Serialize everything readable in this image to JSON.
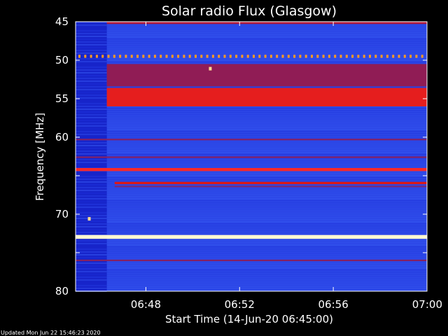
{
  "chart_data": {
    "type": "heatmap",
    "title": "Solar radio Flux (Glasgow)",
    "xlabel": "Start Time (14-Jun-20 06:45:00)",
    "ylabel": "Frequency [MHz]",
    "x_ticks": [
      "06:48",
      "06:52",
      "06:56",
      "07:00"
    ],
    "y_ticks": [
      45,
      50,
      55,
      60,
      65,
      70,
      75,
      80
    ],
    "y_tick_labels": [
      "45",
      "50",
      "55",
      "60",
      "",
      "70",
      "",
      "80"
    ],
    "xlim": [
      "06:45:00",
      "07:00:00"
    ],
    "ylim": [
      80,
      45
    ],
    "colormap": [
      "#00008c",
      "#1b2cd6",
      "#3a5ef5",
      "#8a1c5a",
      "#d81818",
      "#ff2a2a",
      "#ffa020",
      "#fff8d0"
    ],
    "background_level": 0.22,
    "initial_segment": {
      "time_start": "06:45:00",
      "time_end": "06:46:20",
      "level": 0.12
    },
    "bands": [
      {
        "freq_low": 45.0,
        "freq_high": 45.3,
        "level": 0.5,
        "time_start": "06:46:20"
      },
      {
        "freq_low": 49.3,
        "freq_high": 49.6,
        "level": 0.85,
        "pattern": "dotted"
      },
      {
        "freq_low": 50.5,
        "freq_high": 53.4,
        "level": 0.44,
        "time_start": "06:46:20"
      },
      {
        "freq_low": 53.6,
        "freq_high": 56.0,
        "level": 0.62,
        "time_start": "06:46:20"
      },
      {
        "freq_low": 60.2,
        "freq_high": 60.4,
        "level": 0.42
      },
      {
        "freq_low": 62.5,
        "freq_high": 62.7,
        "level": 0.42
      },
      {
        "freq_low": 64.0,
        "freq_high": 64.4,
        "level": 0.7
      },
      {
        "freq_low": 65.8,
        "freq_high": 66.1,
        "level": 0.58,
        "time_start": "06:46:40"
      },
      {
        "freq_low": 66.3,
        "freq_high": 66.5,
        "level": 0.4,
        "time_start": "06:46:40"
      },
      {
        "freq_low": 72.7,
        "freq_high": 73.2,
        "level": 1.0
      },
      {
        "freq_low": 75.9,
        "freq_high": 76.1,
        "level": 0.42
      }
    ],
    "spots": [
      {
        "time": "06:50:45",
        "freq": 51.1,
        "level": 0.95
      },
      {
        "time": "06:45:35",
        "freq": 70.6,
        "level": 0.95
      }
    ]
  },
  "footer": {
    "updated": "Updated Mon Jun 22 15:46:23 2020"
  }
}
